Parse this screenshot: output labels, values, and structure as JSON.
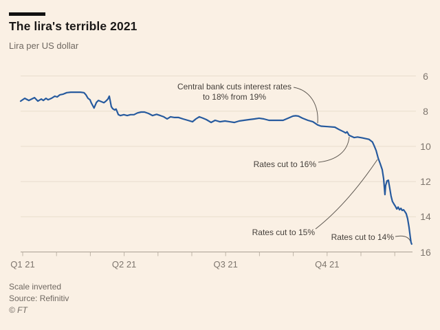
{
  "header": {
    "title": "The lira's terrible 2021",
    "subtitle": "Lira per US dollar"
  },
  "footer": {
    "note": "Scale inverted",
    "source": "Source: Refinitiv",
    "copyright": "© FT"
  },
  "colors": {
    "background": "#faf0e4",
    "line": "#265a9e",
    "gridline": "#e8ddcd",
    "axis": "#a89e92",
    "annotation_text": "#45403b",
    "connector": "#5c564f",
    "accent_bar": "#111111"
  },
  "chart_data": {
    "type": "line",
    "title": "The lira's terrible 2021",
    "ylabel": "Lira per US dollar",
    "scale_inverted": true,
    "grid": true,
    "x_unit": "months since 1 Jan 2021",
    "x_tick_months": [
      0,
      1,
      2,
      3,
      4,
      5,
      6,
      7,
      8,
      9,
      10,
      11
    ],
    "x_labels": [
      {
        "month": 0,
        "label": "Q1 21"
      },
      {
        "month": 3,
        "label": "Q2 21"
      },
      {
        "month": 6,
        "label": "Q3 21"
      },
      {
        "month": 9,
        "label": "Q4 21"
      }
    ],
    "y_ticks": [
      6,
      8,
      10,
      12,
      14,
      16
    ],
    "y_range": [
      6,
      16
    ],
    "series": [
      {
        "name": "Lira per US dollar",
        "points": [
          [
            -0.06,
            7.43
          ],
          [
            0.06,
            7.27
          ],
          [
            0.18,
            7.39
          ],
          [
            0.35,
            7.23
          ],
          [
            0.45,
            7.43
          ],
          [
            0.55,
            7.31
          ],
          [
            0.61,
            7.39
          ],
          [
            0.69,
            7.27
          ],
          [
            0.75,
            7.35
          ],
          [
            0.85,
            7.27
          ],
          [
            0.95,
            7.15
          ],
          [
            1.02,
            7.19
          ],
          [
            1.1,
            7.07
          ],
          [
            1.2,
            7.03
          ],
          [
            1.3,
            6.95
          ],
          [
            1.42,
            6.92
          ],
          [
            1.57,
            6.92
          ],
          [
            1.71,
            6.92
          ],
          [
            1.81,
            6.95
          ],
          [
            1.87,
            7.07
          ],
          [
            1.93,
            7.27
          ],
          [
            1.99,
            7.35
          ],
          [
            2.03,
            7.54
          ],
          [
            2.11,
            7.82
          ],
          [
            2.18,
            7.5
          ],
          [
            2.24,
            7.39
          ],
          [
            2.34,
            7.47
          ],
          [
            2.4,
            7.52
          ],
          [
            2.46,
            7.43
          ],
          [
            2.52,
            7.31
          ],
          [
            2.56,
            7.15
          ],
          [
            2.62,
            7.74
          ],
          [
            2.66,
            7.86
          ],
          [
            2.72,
            7.93
          ],
          [
            2.76,
            7.88
          ],
          [
            2.83,
            8.2
          ],
          [
            2.89,
            8.25
          ],
          [
            2.99,
            8.2
          ],
          [
            3.09,
            8.25
          ],
          [
            3.19,
            8.2
          ],
          [
            3.29,
            8.2
          ],
          [
            3.39,
            8.1
          ],
          [
            3.5,
            8.05
          ],
          [
            3.6,
            8.05
          ],
          [
            3.72,
            8.13
          ],
          [
            3.84,
            8.25
          ],
          [
            3.96,
            8.18
          ],
          [
            4.07,
            8.25
          ],
          [
            4.17,
            8.32
          ],
          [
            4.27,
            8.44
          ],
          [
            4.37,
            8.32
          ],
          [
            4.49,
            8.36
          ],
          [
            4.61,
            8.36
          ],
          [
            4.74,
            8.44
          ],
          [
            4.88,
            8.52
          ],
          [
            5.02,
            8.6
          ],
          [
            5.12,
            8.44
          ],
          [
            5.22,
            8.32
          ],
          [
            5.33,
            8.4
          ],
          [
            5.43,
            8.48
          ],
          [
            5.57,
            8.64
          ],
          [
            5.69,
            8.52
          ],
          [
            5.83,
            8.6
          ],
          [
            5.98,
            8.56
          ],
          [
            6.12,
            8.6
          ],
          [
            6.26,
            8.64
          ],
          [
            6.4,
            8.56
          ],
          [
            6.54,
            8.52
          ],
          [
            6.69,
            8.48
          ],
          [
            6.85,
            8.44
          ],
          [
            6.99,
            8.4
          ],
          [
            7.13,
            8.44
          ],
          [
            7.28,
            8.52
          ],
          [
            7.42,
            8.52
          ],
          [
            7.56,
            8.52
          ],
          [
            7.7,
            8.52
          ],
          [
            7.85,
            8.4
          ],
          [
            7.99,
            8.28
          ],
          [
            8.07,
            8.26
          ],
          [
            8.15,
            8.28
          ],
          [
            8.27,
            8.4
          ],
          [
            8.43,
            8.52
          ],
          [
            8.58,
            8.6
          ],
          [
            8.72,
            8.78
          ],
          [
            8.82,
            8.85
          ],
          [
            9.02,
            8.88
          ],
          [
            9.23,
            8.91
          ],
          [
            9.35,
            9.04
          ],
          [
            9.49,
            9.17
          ],
          [
            9.55,
            9.24
          ],
          [
            9.59,
            9.17
          ],
          [
            9.65,
            9.37
          ],
          [
            9.8,
            9.5
          ],
          [
            9.9,
            9.47
          ],
          [
            10.04,
            9.52
          ],
          [
            10.24,
            9.6
          ],
          [
            10.34,
            9.75
          ],
          [
            10.39,
            9.96
          ],
          [
            10.45,
            10.24
          ],
          [
            10.51,
            10.67
          ],
          [
            10.57,
            10.98
          ],
          [
            10.63,
            11.33
          ],
          [
            10.67,
            11.84
          ],
          [
            10.71,
            12.74
          ],
          [
            10.73,
            12.23
          ],
          [
            10.77,
            11.96
          ],
          [
            10.81,
            11.92
          ],
          [
            10.85,
            12.35
          ],
          [
            10.89,
            12.82
          ],
          [
            10.93,
            13.13
          ],
          [
            10.98,
            13.29
          ],
          [
            11.02,
            13.41
          ],
          [
            11.06,
            13.56
          ],
          [
            11.1,
            13.45
          ],
          [
            11.14,
            13.6
          ],
          [
            11.18,
            13.52
          ],
          [
            11.22,
            13.64
          ],
          [
            11.26,
            13.6
          ],
          [
            11.3,
            13.71
          ],
          [
            11.34,
            13.83
          ],
          [
            11.38,
            14.11
          ],
          [
            11.42,
            14.58
          ],
          [
            11.46,
            15.16
          ],
          [
            11.48,
            15.44
          ],
          [
            11.5,
            15.55
          ]
        ]
      }
    ],
    "annotations": [
      {
        "id": "cut-18",
        "lines": [
          "Central bank cuts interest rates",
          "to 18% from 19%"
        ],
        "anchor": {
          "month": 8.72,
          "value": 8.78
        }
      },
      {
        "id": "cut-16",
        "text": "Rates cut to 16%",
        "anchor": {
          "month": 9.65,
          "value": 9.37
        }
      },
      {
        "id": "cut-15",
        "text": "Rates cut to 15%",
        "anchor": {
          "month": 10.51,
          "value": 10.67
        }
      },
      {
        "id": "cut-14",
        "text": "Rates cut to 14%",
        "anchor": {
          "month": 11.5,
          "value": 15.55
        }
      }
    ]
  }
}
